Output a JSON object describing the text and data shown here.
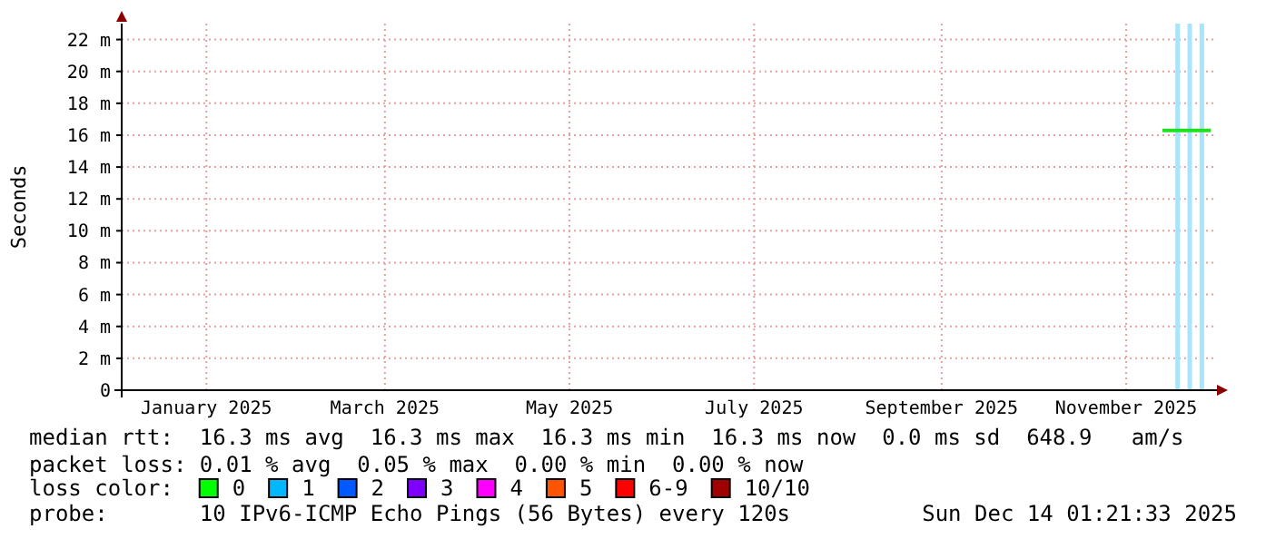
{
  "chart_data": {
    "type": "line",
    "ylabel": "Seconds",
    "xlim": [
      "2024-12-19",
      "2025-12-16"
    ],
    "xticks": [
      {
        "value": "2025-01-16",
        "label": "January 2025"
      },
      {
        "value": "2025-03-16",
        "label": "March 2025"
      },
      {
        "value": "2025-05-16",
        "label": "May 2025"
      },
      {
        "value": "2025-07-16",
        "label": "July 2025"
      },
      {
        "value": "2025-09-16",
        "label": "September 2025"
      },
      {
        "value": "2025-11-16",
        "label": "November 2025"
      }
    ],
    "ylim": [
      0,
      23
    ],
    "yticks": [
      0,
      {
        "value": 2,
        "label": "2 m"
      },
      {
        "value": 4,
        "label": "4 m"
      },
      {
        "value": 6,
        "label": "6 m"
      },
      {
        "value": 8,
        "label": "8 m"
      },
      {
        "value": 10,
        "label": "10 m"
      },
      {
        "value": 12,
        "label": "12 m"
      },
      {
        "value": 14,
        "label": "14 m"
      },
      {
        "value": 16,
        "label": "16 m"
      },
      {
        "value": 18,
        "label": "18 m"
      },
      {
        "value": 20,
        "label": "20 m"
      },
      {
        "value": 22,
        "label": "22 m"
      }
    ],
    "grid": true,
    "marker": "none",
    "line_style": "solid",
    "series": [
      {
        "color": "#20e020",
        "x": [
          "2025-11-28",
          "2025-12-02",
          "2025-12-06",
          "2025-12-10",
          "2025-12-14"
        ],
        "values": [
          16.3,
          16.3,
          16.3,
          16.3,
          16.3
        ]
      }
    ],
    "ref_lines": [
      {
        "axis": "x",
        "value": "2025-12-03",
        "color": "#a8e4fc"
      },
      {
        "axis": "x",
        "value": "2025-12-07",
        "color": "#a8e4fc"
      },
      {
        "axis": "x",
        "value": "2025-12-11",
        "color": "#a8e4fc"
      }
    ],
    "annotations": [
      "median rtt:  16.3 ms avg  16.3 ms max  16.3 ms min  16.3 ms now  0.0 ms sd  648.9   am/s",
      "packet loss: 0.01 % avg  0.05 % max  0.00 % min  0.00 % now",
      "loss color:",
      "0",
      "1",
      "2",
      "3",
      "4",
      "5",
      "6-9",
      "10/10",
      "probe:       10 IPv6-ICMP Echo Pings (56 Bytes) every 120s",
      "Sun Dec 14 01:21:33 2025"
    ]
  }
}
